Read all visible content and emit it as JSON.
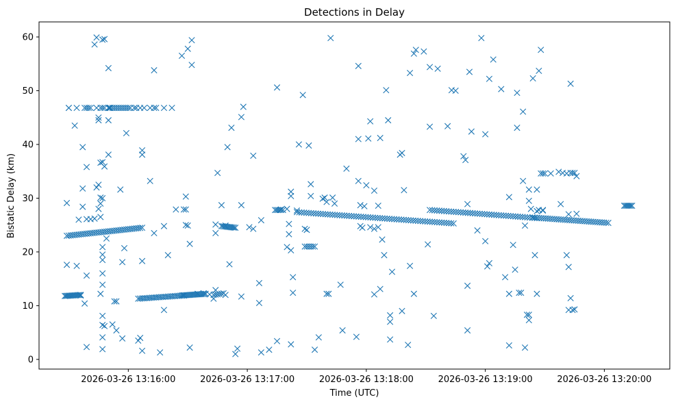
{
  "chart_data": {
    "type": "scatter",
    "title": "Detections in Delay",
    "xlabel": "Time (UTC)",
    "ylabel": "Bistatic Delay (km)",
    "marker": "x",
    "color": "#1f77b4",
    "grid": false,
    "legend": false,
    "xlim": [
      "2026-03-26 13:15:15",
      "2026-03-26 13:20:33"
    ],
    "ylim": [
      -1.8,
      62.8
    ],
    "x_ticks": [
      "2026-03-26 13:16:00",
      "2026-03-26 13:17:00",
      "2026-03-26 13:18:00",
      "2026-03-26 13:19:00",
      "2026-03-26 13:20:00"
    ],
    "y_ticks": [
      0,
      10,
      20,
      30,
      40,
      50,
      60
    ],
    "time_base": "2026-03-26 13:15:00",
    "x_unit": "seconds since time_base",
    "tracks": [
      {
        "x_start": 29,
        "x_end": 67,
        "y_start": 23.0,
        "y_end": 24.5,
        "step": 1.0
      },
      {
        "x_start": 50,
        "x_end": 51,
        "y_start": 46.8,
        "y_end": 46.8,
        "step": 0.3
      },
      {
        "x_start": 28,
        "x_end": 36,
        "y_start": 11.8,
        "y_end": 12.0,
        "step": 0.6
      },
      {
        "x_start": 65,
        "x_end": 88,
        "y_start": 11.3,
        "y_end": 11.9,
        "step": 0.9
      },
      {
        "x_start": 87,
        "x_end": 99,
        "y_start": 11.9,
        "y_end": 12.2,
        "step": 0.7
      },
      {
        "x_start": 103,
        "x_end": 108,
        "y_start": 12.0,
        "y_end": 12.3,
        "step": 1.0
      },
      {
        "x_start": 107,
        "x_end": 114,
        "y_start": 24.8,
        "y_end": 24.5,
        "step": 0.7
      },
      {
        "x_start": 134,
        "x_end": 137,
        "y_start": 27.8,
        "y_end": 27.8,
        "step": 0.8
      },
      {
        "x_start": 145,
        "x_end": 224,
        "y_start": 27.4,
        "y_end": 25.3,
        "step": 1.2
      },
      {
        "x_start": 212,
        "x_end": 266,
        "y_start": 27.8,
        "y_end": 26.3,
        "step": 1.2
      },
      {
        "x_start": 264,
        "x_end": 302,
        "y_start": 26.4,
        "y_end": 25.4,
        "step": 1.1
      },
      {
        "x_start": 310,
        "x_end": 314,
        "y_start": 28.6,
        "y_end": 28.6,
        "step": 0.7
      }
    ],
    "points": [
      [
        30,
        46.8
      ],
      [
        34,
        46.8
      ],
      [
        38,
        46.8
      ],
      [
        39,
        46.8
      ],
      [
        40,
        46.8
      ],
      [
        41,
        46.8
      ],
      [
        44,
        46.8
      ],
      [
        46,
        46.8
      ],
      [
        47,
        46.8
      ],
      [
        48,
        46.8
      ],
      [
        52,
        46.8
      ],
      [
        53,
        46.8
      ],
      [
        54,
        46.8
      ],
      [
        55,
        46.8
      ],
      [
        56,
        46.8
      ],
      [
        57,
        46.8
      ],
      [
        58,
        46.8
      ],
      [
        59,
        46.8
      ],
      [
        60,
        46.8
      ],
      [
        61,
        46.8
      ],
      [
        63,
        46.8
      ],
      [
        64,
        46.8
      ],
      [
        66,
        46.8
      ],
      [
        68,
        46.8
      ],
      [
        71,
        46.8
      ],
      [
        73,
        46.8
      ],
      [
        74,
        46.8
      ],
      [
        78,
        46.8
      ],
      [
        29,
        29.1
      ],
      [
        29,
        17.6
      ],
      [
        30,
        46.8
      ],
      [
        33,
        43.5
      ],
      [
        34,
        17.4
      ],
      [
        35,
        26
      ],
      [
        36,
        11.9
      ],
      [
        37,
        31.8
      ],
      [
        37,
        28.4
      ],
      [
        37,
        39.5
      ],
      [
        38,
        10.4
      ],
      [
        39,
        35.8
      ],
      [
        39,
        26.1
      ],
      [
        39,
        15.6
      ],
      [
        39,
        2.3
      ],
      [
        41,
        26.1
      ],
      [
        43,
        26.2
      ],
      [
        44,
        32
      ],
      [
        45,
        32.5
      ],
      [
        45,
        28
      ],
      [
        46,
        29
      ],
      [
        46,
        30.1
      ],
      [
        46,
        26.5
      ],
      [
        46,
        36.6
      ],
      [
        47,
        36.7
      ],
      [
        47,
        30
      ],
      [
        47,
        19.5
      ],
      [
        47,
        20.9
      ],
      [
        47,
        18.5
      ],
      [
        47,
        16
      ],
      [
        46,
        12.2
      ],
      [
        47,
        13.9
      ],
      [
        47,
        8.1
      ],
      [
        47,
        6.4
      ],
      [
        47,
        4.1
      ],
      [
        47,
        1.9
      ],
      [
        48,
        6.2
      ],
      [
        48,
        35.9
      ],
      [
        49,
        22.5
      ],
      [
        50,
        54.2
      ],
      [
        50,
        38.1
      ],
      [
        50,
        44.5
      ],
      [
        48,
        59.6
      ],
      [
        47,
        59.5
      ],
      [
        44,
        59.9
      ],
      [
        43,
        58.6
      ],
      [
        45,
        45
      ],
      [
        45,
        44.5
      ],
      [
        52,
        6.5
      ],
      [
        53,
        10.8
      ],
      [
        54,
        5.4
      ],
      [
        54,
        10.8
      ],
      [
        56,
        31.6
      ],
      [
        57,
        3.9
      ],
      [
        57,
        18.1
      ],
      [
        58,
        20.7
      ],
      [
        59,
        42.1
      ],
      [
        65,
        3.5
      ],
      [
        66,
        4
      ],
      [
        67,
        38.1
      ],
      [
        67,
        38.9
      ],
      [
        67,
        1.6
      ],
      [
        67,
        18.3
      ],
      [
        71,
        33.2
      ],
      [
        73,
        23.5
      ],
      [
        73,
        53.8
      ],
      [
        76,
        1.3
      ],
      [
        78,
        24.8
      ],
      [
        78,
        9.2
      ],
      [
        80,
        19.4
      ],
      [
        82,
        46.8
      ],
      [
        84,
        27.9
      ],
      [
        88,
        27.9
      ],
      [
        89,
        27.9
      ],
      [
        89,
        30.3
      ],
      [
        89,
        25
      ],
      [
        90,
        24.9
      ],
      [
        90,
        57.8
      ],
      [
        87,
        56.5
      ],
      [
        92,
        59.4
      ],
      [
        92,
        54.8
      ],
      [
        91,
        21.5
      ],
      [
        91,
        2.2
      ],
      [
        95,
        12.2
      ],
      [
        98,
        12.3
      ],
      [
        101,
        12.1
      ],
      [
        103,
        11.3
      ],
      [
        104,
        12.9
      ],
      [
        104,
        25.1
      ],
      [
        104,
        23.5
      ],
      [
        105,
        34.7
      ],
      [
        107,
        28.7
      ],
      [
        109,
        12
      ],
      [
        109,
        24.9
      ],
      [
        110,
        39.5
      ],
      [
        111,
        17.7
      ],
      [
        112,
        43.1
      ],
      [
        114,
        1
      ],
      [
        115,
        2
      ],
      [
        117,
        28.7
      ],
      [
        117,
        45.1
      ],
      [
        117,
        11.7
      ],
      [
        118,
        47
      ],
      [
        121,
        24.6
      ],
      [
        123,
        24.3
      ],
      [
        123,
        37.9
      ],
      [
        126,
        14.2
      ],
      [
        126,
        10.5
      ],
      [
        127,
        1.3
      ],
      [
        127,
        25.9
      ],
      [
        131,
        1.8
      ],
      [
        135,
        3.4
      ],
      [
        135,
        50.6
      ],
      [
        137,
        27.9
      ],
      [
        138,
        27.8
      ],
      [
        140,
        28
      ],
      [
        140,
        20.9
      ],
      [
        141,
        25.2
      ],
      [
        141,
        23.3
      ],
      [
        142,
        20.3
      ],
      [
        142,
        2.8
      ],
      [
        142,
        31.2
      ],
      [
        142,
        30.4
      ],
      [
        143,
        12.4
      ],
      [
        143,
        15.3
      ],
      [
        145,
        27.7
      ],
      [
        146,
        40
      ],
      [
        148,
        49.2
      ],
      [
        149,
        24.3
      ],
      [
        150,
        24.1
      ],
      [
        151,
        39.8
      ],
      [
        149,
        21
      ],
      [
        150,
        21
      ],
      [
        151,
        21
      ],
      [
        152,
        21
      ],
      [
        153,
        21
      ],
      [
        154,
        21
      ],
      [
        152,
        32.6
      ],
      [
        152,
        30.4
      ],
      [
        154,
        1.8
      ],
      [
        156,
        4.1
      ],
      [
        158,
        29.9
      ],
      [
        159,
        30.1
      ],
      [
        160,
        29.3
      ],
      [
        160,
        12.2
      ],
      [
        161,
        12.2
      ],
      [
        162,
        59.8
      ],
      [
        163,
        30.1
      ],
      [
        164,
        29
      ],
      [
        167,
        13.9
      ],
      [
        168,
        5.4
      ],
      [
        170,
        35.5
      ],
      [
        175,
        4.2
      ],
      [
        176,
        54.6
      ],
      [
        176,
        41
      ],
      [
        176,
        33.2
      ],
      [
        177,
        24.8
      ],
      [
        177,
        28.7
      ],
      [
        178,
        24.5
      ],
      [
        179,
        28.5
      ],
      [
        180,
        32.4
      ],
      [
        181,
        41.1
      ],
      [
        182,
        24.6
      ],
      [
        182,
        44.3
      ],
      [
        184,
        31.4
      ],
      [
        184,
        24.3
      ],
      [
        184,
        12.1
      ],
      [
        186,
        24.6
      ],
      [
        186,
        28.6
      ],
      [
        187,
        41.2
      ],
      [
        187,
        13.1
      ],
      [
        188,
        22.3
      ],
      [
        189,
        19.4
      ],
      [
        190,
        50.1
      ],
      [
        191,
        44.5
      ],
      [
        192,
        8.2
      ],
      [
        192,
        7
      ],
      [
        192,
        3.7
      ],
      [
        193,
        16.3
      ],
      [
        197,
        38.1
      ],
      [
        198,
        38.4
      ],
      [
        198,
        9
      ],
      [
        199,
        31.5
      ],
      [
        201,
        2.7
      ],
      [
        202,
        17.4
      ],
      [
        202,
        53.3
      ],
      [
        204,
        56.9
      ],
      [
        204,
        12.2
      ],
      [
        205,
        57.6
      ],
      [
        209,
        57.3
      ],
      [
        211,
        21.4
      ],
      [
        212,
        54.4
      ],
      [
        212,
        43.3
      ],
      [
        214,
        8.1
      ],
      [
        216,
        54.1
      ],
      [
        221,
        43.4
      ],
      [
        223,
        50.1
      ],
      [
        225,
        50
      ],
      [
        229,
        37.8
      ],
      [
        230,
        37.1
      ],
      [
        231,
        28.9
      ],
      [
        231,
        13.7
      ],
      [
        231,
        5.4
      ],
      [
        232,
        53.5
      ],
      [
        233,
        42.4
      ],
      [
        236,
        24
      ],
      [
        238,
        59.8
      ],
      [
        240,
        22
      ],
      [
        240,
        41.9
      ],
      [
        241,
        17.3
      ],
      [
        242,
        52.2
      ],
      [
        242,
        17.9
      ],
      [
        244,
        55.8
      ],
      [
        248,
        50.3
      ],
      [
        250,
        15.3
      ],
      [
        252,
        2.6
      ],
      [
        252,
        12.2
      ],
      [
        252,
        30.2
      ],
      [
        254,
        21.3
      ],
      [
        255,
        16.7
      ],
      [
        256,
        43.1
      ],
      [
        256,
        49.6
      ],
      [
        257,
        12.4
      ],
      [
        258,
        12.4
      ],
      [
        259,
        33.2
      ],
      [
        259,
        46.1
      ],
      [
        260,
        24.9
      ],
      [
        260,
        2.2
      ],
      [
        261,
        8.3
      ],
      [
        262,
        8.3
      ],
      [
        262,
        7.3
      ],
      [
        262,
        31.6
      ],
      [
        262,
        29.5
      ],
      [
        263,
        28
      ],
      [
        264,
        52.3
      ],
      [
        265,
        19.4
      ],
      [
        266,
        31.6
      ],
      [
        266,
        27.6
      ],
      [
        266,
        12.2
      ],
      [
        267,
        53.7
      ],
      [
        267,
        27.8
      ],
      [
        268,
        34.6
      ],
      [
        268,
        57.6
      ],
      [
        269,
        27.7
      ],
      [
        269,
        34.6
      ],
      [
        269,
        27.8
      ],
      [
        270,
        34.6
      ],
      [
        273,
        34.6
      ],
      [
        277,
        34.9
      ],
      [
        278,
        28.9
      ],
      [
        279,
        34.7
      ],
      [
        281,
        34.6
      ],
      [
        281,
        19.4
      ],
      [
        282,
        9.2
      ],
      [
        282,
        17.2
      ],
      [
        282,
        27
      ],
      [
        283,
        11.4
      ],
      [
        283,
        51.3
      ],
      [
        284,
        9.2
      ],
      [
        285,
        9.3
      ],
      [
        283,
        34.7
      ],
      [
        284,
        34.7
      ],
      [
        285,
        34.7
      ],
      [
        286,
        34.1
      ],
      [
        286,
        27.1
      ]
    ]
  }
}
